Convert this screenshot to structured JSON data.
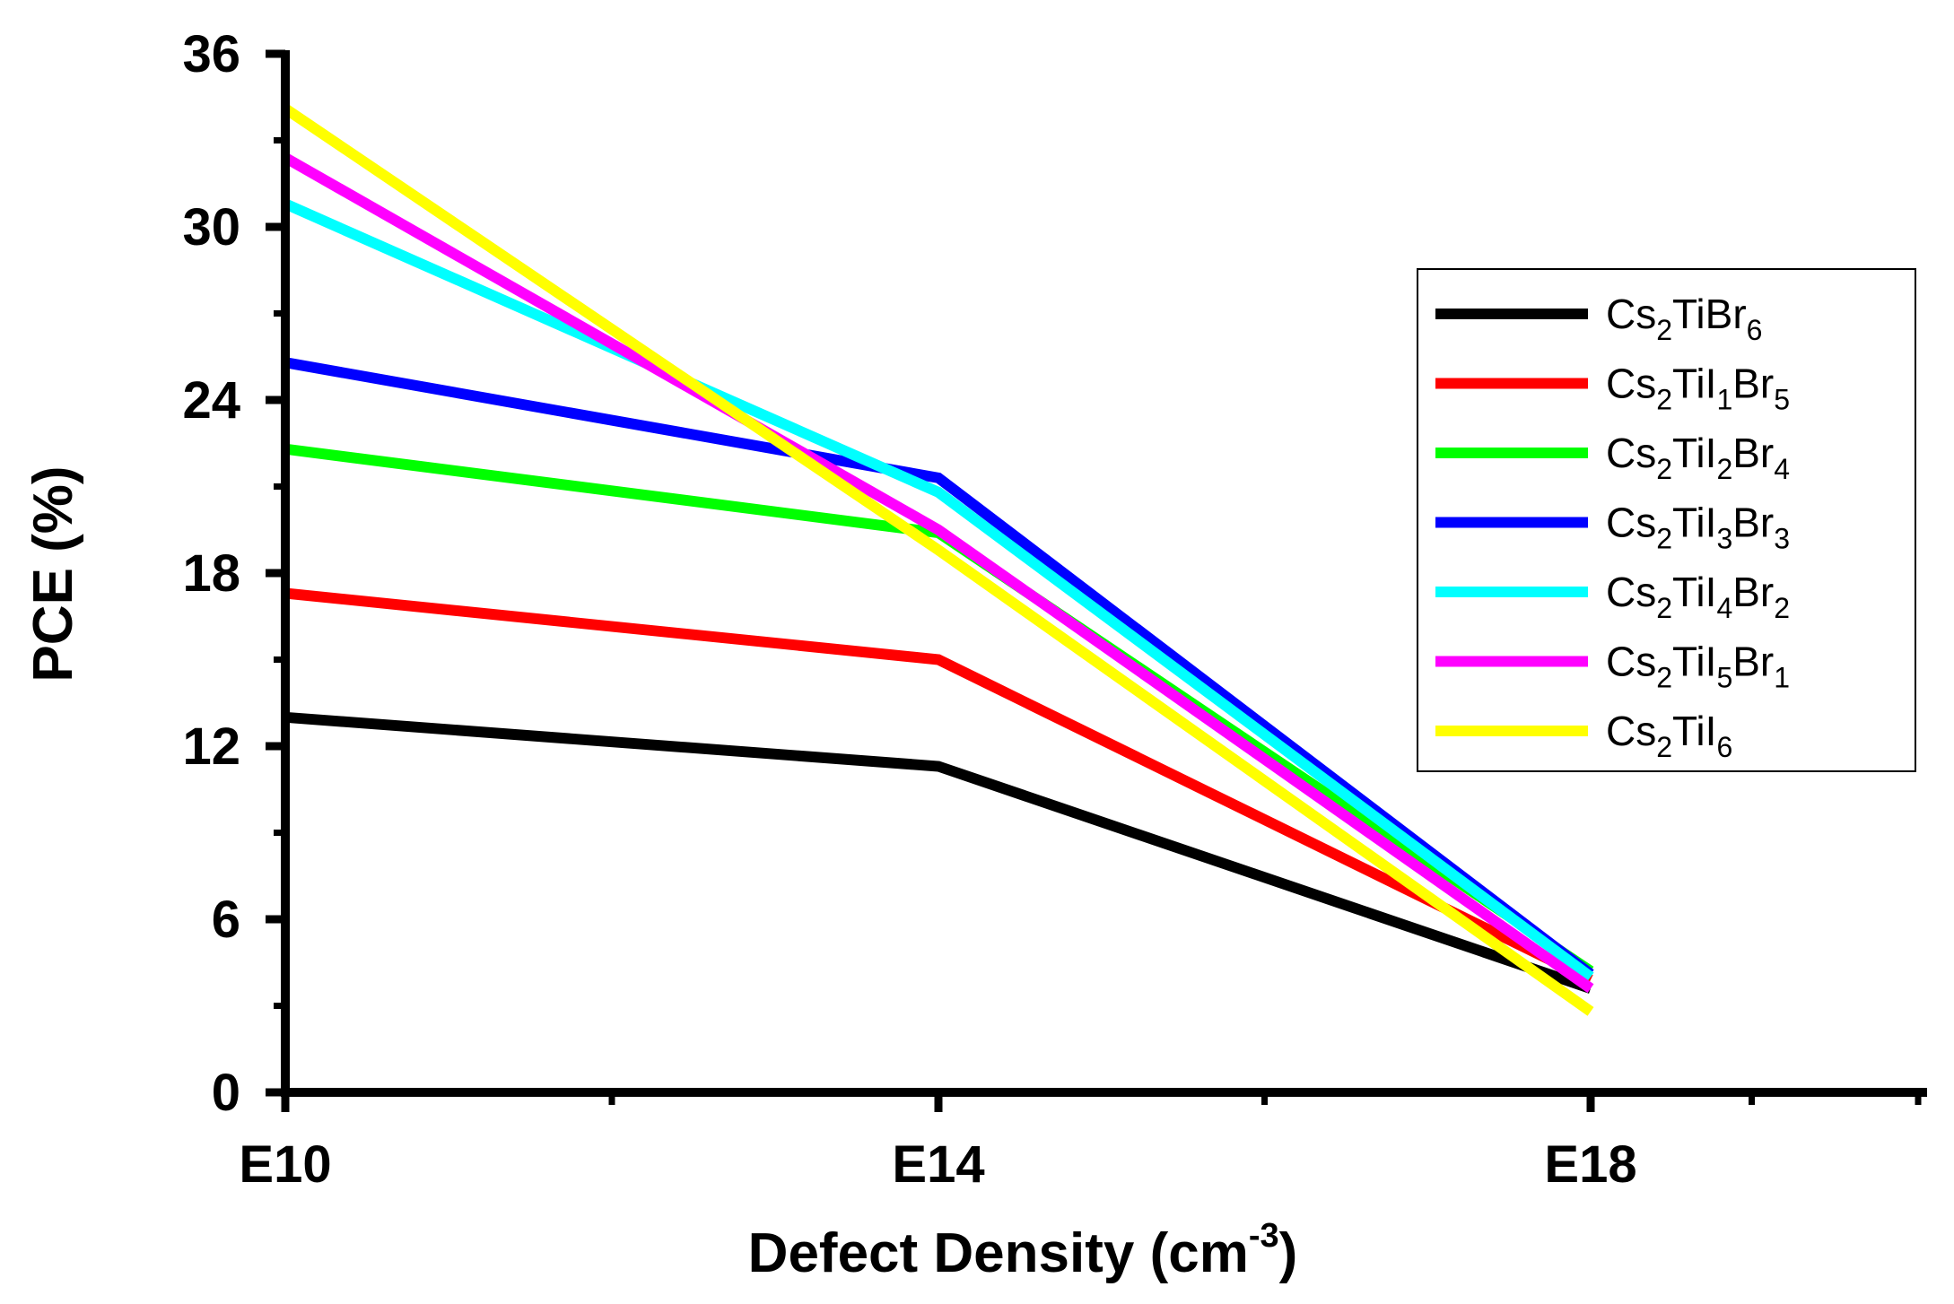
{
  "chart_data": {
    "type": "line",
    "title": "",
    "x": [
      "E10",
      "E14",
      "E18"
    ],
    "xlabel": "Defect Density (cm",
    "xlabel_sup": "-3",
    "xlabel_close": ")",
    "ylabel": "PCE (%)",
    "ylim": [
      0,
      36
    ],
    "yticks": [
      "0",
      "6",
      "12",
      "18",
      "24",
      "30",
      "36"
    ],
    "legend_position": "right",
    "series": [
      {
        "name": "Cs2TiBr6",
        "color": "#000000",
        "values": [
          13.0,
          11.3,
          3.6
        ],
        "label_parts": [
          {
            "t": "Cs"
          },
          {
            "t": "2",
            "sub": true
          },
          {
            "t": "TiBr"
          },
          {
            "t": "6",
            "sub": true
          }
        ]
      },
      {
        "name": "Cs2TiI1Br5",
        "color": "#ff0000",
        "values": [
          17.3,
          15.0,
          3.9
        ],
        "label_parts": [
          {
            "t": "Cs"
          },
          {
            "t": "2",
            "sub": true
          },
          {
            "t": "TiI"
          },
          {
            "t": "1",
            "sub": true
          },
          {
            "t": "Br"
          },
          {
            "t": "5",
            "sub": true
          }
        ]
      },
      {
        "name": "Cs2TiI2Br4",
        "color": "#00ff00",
        "values": [
          22.3,
          19.4,
          4.2
        ],
        "label_parts": [
          {
            "t": "Cs"
          },
          {
            "t": "2",
            "sub": true
          },
          {
            "t": "TiI"
          },
          {
            "t": "2",
            "sub": true
          },
          {
            "t": "Br"
          },
          {
            "t": "4",
            "sub": true
          }
        ]
      },
      {
        "name": "Cs2TiI3Br3",
        "color": "#0000ff",
        "values": [
          25.3,
          21.3,
          4.1
        ],
        "label_parts": [
          {
            "t": "Cs"
          },
          {
            "t": "2",
            "sub": true
          },
          {
            "t": "TiI"
          },
          {
            "t": "3",
            "sub": true
          },
          {
            "t": "Br"
          },
          {
            "t": "3",
            "sub": true
          }
        ]
      },
      {
        "name": "Cs2TiI4Br2",
        "color": "#00ffff",
        "values": [
          30.8,
          20.8,
          4.0
        ],
        "label_parts": [
          {
            "t": "Cs"
          },
          {
            "t": "2",
            "sub": true
          },
          {
            "t": "TiI"
          },
          {
            "t": "4",
            "sub": true
          },
          {
            "t": "Br"
          },
          {
            "t": "2",
            "sub": true
          }
        ]
      },
      {
        "name": "Cs2TiI5Br1",
        "color": "#ff00ff",
        "values": [
          32.4,
          19.5,
          3.6
        ],
        "label_parts": [
          {
            "t": "Cs"
          },
          {
            "t": "2",
            "sub": true
          },
          {
            "t": "TiI"
          },
          {
            "t": "5",
            "sub": true
          },
          {
            "t": "Br"
          },
          {
            "t": "1",
            "sub": true
          }
        ]
      },
      {
        "name": "Cs2TiI6",
        "color": "#ffff00",
        "values": [
          34.1,
          18.8,
          2.8
        ],
        "label_parts": [
          {
            "t": "Cs"
          },
          {
            "t": "2",
            "sub": true
          },
          {
            "t": "TiI"
          },
          {
            "t": "6",
            "sub": true
          }
        ]
      }
    ]
  }
}
